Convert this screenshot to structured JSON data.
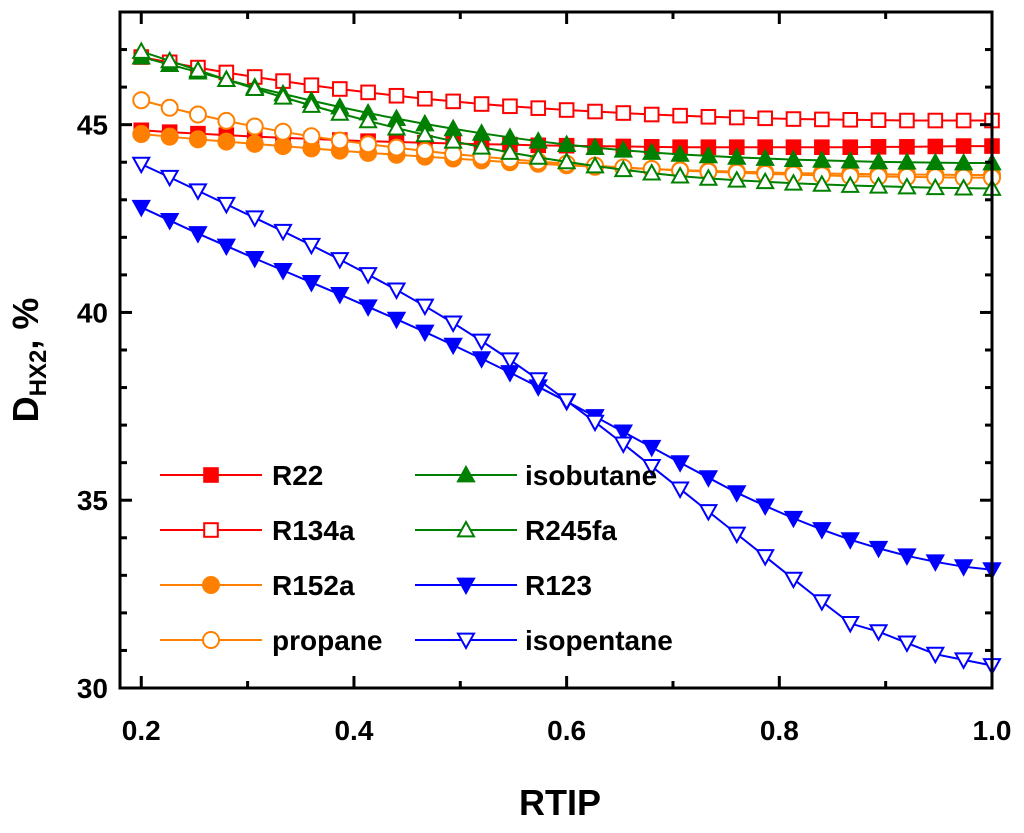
{
  "chart_data": {
    "type": "line",
    "title": "",
    "xlabel": "RTIP",
    "ylabel": "D",
    "ylabel_sub": "HX2",
    "ylabel_suffix": ", %",
    "xlim": [
      0.18,
      1.0
    ],
    "ylim": [
      30,
      48
    ],
    "x_ticks": [
      0.2,
      0.4,
      0.6,
      0.8,
      1.0
    ],
    "x_tick_labels": [
      "0.2",
      "0.4",
      "0.6",
      "0.8",
      "1.0"
    ],
    "y_ticks": [
      30,
      35,
      40,
      45
    ],
    "y_tick_labels": [
      "30",
      "35",
      "40",
      "45"
    ],
    "grid": false,
    "legend_position": "lower-left",
    "x": [
      0.2,
      0.2267,
      0.2533,
      0.28,
      0.3067,
      0.3333,
      0.36,
      0.3867,
      0.4133,
      0.44,
      0.4667,
      0.4933,
      0.52,
      0.5467,
      0.5733,
      0.6,
      0.6267,
      0.6533,
      0.68,
      0.7067,
      0.7333,
      0.76,
      0.7867,
      0.8133,
      0.84,
      0.8667,
      0.8933,
      0.92,
      0.9467,
      0.9733,
      1.0
    ],
    "series": [
      {
        "name": "R22",
        "color": "#ff0000",
        "marker": "square",
        "filled": true,
        "values": [
          44.85,
          44.8,
          44.76,
          44.72,
          44.68,
          44.65,
          44.62,
          44.59,
          44.56,
          44.54,
          44.52,
          44.5,
          44.48,
          44.47,
          44.45,
          44.44,
          44.43,
          44.42,
          44.41,
          44.4,
          44.4,
          44.4,
          44.4,
          44.4,
          44.4,
          44.4,
          44.41,
          44.41,
          44.42,
          44.43,
          44.43
        ]
      },
      {
        "name": "R134a",
        "color": "#ff0000",
        "marker": "square",
        "filled": false,
        "values": [
          46.8,
          46.66,
          46.52,
          46.39,
          46.27,
          46.16,
          46.05,
          45.95,
          45.86,
          45.77,
          45.69,
          45.62,
          45.55,
          45.49,
          45.44,
          45.39,
          45.35,
          45.31,
          45.27,
          45.24,
          45.21,
          45.19,
          45.17,
          45.15,
          45.14,
          45.13,
          45.12,
          45.11,
          45.11,
          45.11,
          45.11
        ]
      },
      {
        "name": "R152a",
        "color": "#ff8000",
        "marker": "circle",
        "filled": true,
        "values": [
          44.75,
          44.68,
          44.61,
          44.55,
          44.49,
          44.43,
          44.37,
          44.31,
          44.25,
          44.2,
          44.15,
          44.1,
          44.05,
          44.0,
          43.96,
          43.92,
          43.88,
          43.85,
          43.82,
          43.79,
          43.77,
          43.75,
          43.73,
          43.71,
          43.7,
          43.69,
          43.68,
          43.67,
          43.67,
          43.66,
          43.66
        ]
      },
      {
        "name": "propane",
        "color": "#ff8000",
        "marker": "circle",
        "filled": false,
        "values": [
          45.65,
          45.45,
          45.27,
          45.1,
          44.95,
          44.81,
          44.69,
          44.58,
          44.48,
          44.39,
          44.3,
          44.22,
          44.15,
          44.08,
          44.02,
          43.96,
          43.91,
          43.86,
          43.82,
          43.78,
          43.75,
          43.72,
          43.69,
          43.67,
          43.65,
          43.63,
          43.62,
          43.61,
          43.6,
          43.59,
          43.59
        ]
      },
      {
        "name": "isobutane",
        "color": "#008000",
        "marker": "triangle-up",
        "filled": true,
        "values": [
          46.8,
          46.6,
          46.4,
          46.2,
          46.0,
          45.82,
          45.64,
          45.47,
          45.31,
          45.16,
          45.02,
          44.89,
          44.77,
          44.66,
          44.56,
          44.47,
          44.39,
          44.32,
          44.26,
          44.21,
          44.17,
          44.13,
          44.1,
          44.07,
          44.05,
          44.03,
          44.01,
          44.0,
          43.99,
          43.98,
          43.98
        ]
      },
      {
        "name": "R245fa",
        "color": "#008000",
        "marker": "triangle-up",
        "filled": false,
        "values": [
          46.95,
          46.7,
          46.45,
          46.2,
          45.96,
          45.73,
          45.51,
          45.3,
          45.1,
          44.91,
          44.73,
          44.56,
          44.4,
          44.26,
          44.13,
          44.01,
          43.9,
          43.8,
          43.71,
          43.63,
          43.57,
          43.52,
          43.48,
          43.44,
          43.41,
          43.38,
          43.36,
          43.34,
          43.32,
          43.31,
          43.3
        ]
      },
      {
        "name": "R123",
        "color": "#0000ff",
        "marker": "triangle-down",
        "filled": true,
        "values": [
          42.8,
          42.45,
          42.1,
          41.77,
          41.44,
          41.12,
          40.8,
          40.48,
          40.15,
          39.82,
          39.48,
          39.13,
          38.77,
          38.4,
          38.02,
          37.63,
          37.23,
          36.82,
          36.41,
          36.0,
          35.6,
          35.2,
          34.85,
          34.52,
          34.22,
          33.95,
          33.72,
          33.52,
          33.36,
          33.23,
          33.15
        ]
      },
      {
        "name": "isopentane",
        "color": "#0000ff",
        "marker": "triangle-down",
        "filled": false,
        "values": [
          43.95,
          43.6,
          43.24,
          42.88,
          42.52,
          42.16,
          41.79,
          41.41,
          41.01,
          40.6,
          40.17,
          39.72,
          39.24,
          38.74,
          38.21,
          37.65,
          37.08,
          36.5,
          35.9,
          35.3,
          34.7,
          34.1,
          33.5,
          32.9,
          32.3,
          31.72,
          31.5,
          31.2,
          30.9,
          30.75,
          30.6
        ]
      }
    ],
    "legend": {
      "column1": [
        "R22",
        "R134a",
        "R152a",
        "propane"
      ],
      "column2": [
        "isobutane",
        "R245fa",
        "R123",
        "isopentane"
      ]
    }
  }
}
